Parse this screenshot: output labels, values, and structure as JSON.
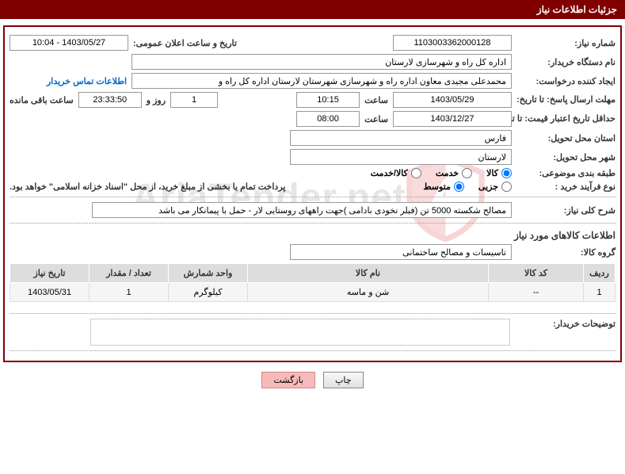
{
  "title": "جزئیات اطلاعات نیاز",
  "fields": {
    "need_number_label": "شماره نیاز:",
    "need_number": "1103003362000128",
    "announce_label": "تاریخ و ساعت اعلان عمومی:",
    "announce_value": "1403/05/27 - 10:04",
    "buyer_name_label": "نام دستگاه خریدار:",
    "buyer_name": "اداره کل راه و شهرسازی لارستان",
    "requester_label": "ایجاد کننده درخواست:",
    "requester_value": "محمدعلی مجیدی معاون اداره راه و شهرسازی شهرستان لارستان اداره کل راه و",
    "contact_link": "اطلاعات تماس خریدار",
    "reply_deadline_label": "مهلت ارسال پاسخ: تا تاریخ:",
    "reply_date": "1403/05/29",
    "hour_label": "ساعت",
    "reply_hour": "10:15",
    "days_value": "1",
    "days_and_label": "روز و",
    "time_remain": "23:33:50",
    "time_remain_label": "ساعت باقی مانده",
    "validity_label": "حداقل تاریخ اعتبار قیمت: تا تاریخ:",
    "validity_date": "1403/12/27",
    "validity_hour": "08:00",
    "province_label": "استان محل تحویل:",
    "province": "فارس",
    "city_label": "شهر محل تحویل:",
    "city": "لارستان",
    "category_label": "طبقه بندی موضوعی:",
    "purchase_type_label": "نوع فرآیند خرید :",
    "purchase_note": "پرداخت تمام یا بخشی از مبلغ خرید، از محل \"اسناد خزانه اسلامی\" خواهد بود.",
    "desc_label": "شرح کلی نیاز:",
    "desc_value": "مصالح شکسته 5000 تن (فیلر نخودی بادامی )جهت راههای روستایی لار - حمل با پیمانکار می باشد",
    "goods_section": "اطلاعات کالاهای مورد نیاز",
    "group_label": "گروه کالا:",
    "group_value": "تاسیسات و مصالح ساختمانی",
    "buyer_notes_label": "توضیحات خریدار:"
  },
  "radios": {
    "category": [
      {
        "label": "کالا",
        "checked": true
      },
      {
        "label": "خدمت",
        "checked": false
      },
      {
        "label": "کالا/خدمت",
        "checked": false
      }
    ],
    "purchase": [
      {
        "label": "جزیی",
        "checked": false
      },
      {
        "label": "متوسط",
        "checked": true
      }
    ]
  },
  "table": {
    "headers": [
      "ردیف",
      "کد کالا",
      "نام کالا",
      "واحد شمارش",
      "تعداد / مقدار",
      "تاریخ نیاز"
    ],
    "col_widths": [
      "40px",
      "120px",
      "auto",
      "100px",
      "100px",
      "100px"
    ],
    "rows": [
      [
        "1",
        "--",
        "شن و ماسه",
        "کیلوگرم",
        "1",
        "1403/05/31"
      ]
    ]
  },
  "buttons": {
    "print": "چاپ",
    "back": "بازگشت"
  },
  "watermark": "AriaTender.net",
  "colors": {
    "header_bg": "#800000",
    "wm_red": "#d33",
    "wm_gray": "#888"
  }
}
